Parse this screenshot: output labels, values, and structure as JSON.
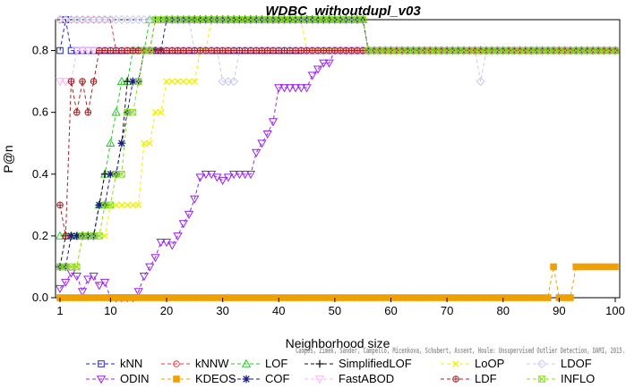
{
  "chart_data": {
    "type": "line",
    "title": "WDBC_withoutdupl_v03",
    "xlabel": "Neighborhood size",
    "ylabel": "P@n",
    "xlim": [
      1,
      100
    ],
    "ylim": [
      0,
      0.9
    ],
    "xticks": [
      1,
      10,
      20,
      30,
      40,
      50,
      60,
      70,
      80,
      90,
      100
    ],
    "yticks": [
      "0.0",
      "0.2",
      "0.4",
      "0.6",
      "0.8"
    ],
    "ytick_values": [
      0,
      0.2,
      0.4,
      0.6,
      0.8
    ],
    "grid": false,
    "legend_position": "bottom",
    "credit": "Campos, Zimek, Sander, Campello, Micenkova, Schubert, Assent, Houle: Unsupervised Outlier Detection, DAMI, 2015.",
    "series": [
      {
        "name": "kNN",
        "color": "#1f1fcf",
        "marker": "square",
        "points": [
          [
            1,
            0.8
          ],
          [
            2,
            0.9
          ],
          [
            3,
            0.8
          ],
          [
            100,
            0.8
          ]
        ]
      },
      {
        "name": "kNNW",
        "color": "#e83a3a",
        "marker": "circle",
        "points": [
          [
            1,
            0.9
          ],
          [
            10,
            0.9
          ],
          [
            11,
            0.8
          ],
          [
            100,
            0.8
          ]
        ]
      },
      {
        "name": "LOF",
        "color": "#22cc22",
        "marker": "triangle",
        "points": [
          [
            1,
            0.2
          ],
          [
            2,
            0.2
          ],
          [
            3,
            0.2
          ],
          [
            4,
            0.2
          ],
          [
            5,
            0.2
          ],
          [
            6,
            0.2
          ],
          [
            7,
            0.2
          ],
          [
            8,
            0.3
          ],
          [
            9,
            0.4
          ],
          [
            10,
            0.5
          ],
          [
            11,
            0.6
          ],
          [
            12,
            0.7
          ],
          [
            13,
            0.7
          ],
          [
            14,
            0.8
          ],
          [
            15,
            0.8
          ],
          [
            16,
            0.8
          ],
          [
            17,
            0.9
          ],
          [
            55,
            0.9
          ],
          [
            56,
            0.8
          ],
          [
            100,
            0.8
          ]
        ]
      },
      {
        "name": "SimplifiedLOF",
        "color": "#111111",
        "marker": "plus",
        "points": [
          [
            1,
            0.1
          ],
          [
            2,
            0.2
          ],
          [
            3,
            0.2
          ],
          [
            4,
            0.2
          ],
          [
            5,
            0.2
          ],
          [
            6,
            0.2
          ],
          [
            7,
            0.2
          ],
          [
            8,
            0.3
          ],
          [
            9,
            0.4
          ],
          [
            10,
            0.4
          ],
          [
            11,
            0.4
          ],
          [
            12,
            0.5
          ],
          [
            13,
            0.7
          ],
          [
            14,
            0.7
          ],
          [
            15,
            0.7
          ],
          [
            16,
            0.8
          ],
          [
            18,
            0.9
          ],
          [
            55,
            0.9
          ],
          [
            56,
            0.8
          ],
          [
            100,
            0.8
          ]
        ]
      },
      {
        "name": "LoOP",
        "color": "#f0f000",
        "marker": "x",
        "points": [
          [
            1,
            0.1
          ],
          [
            5,
            0.2
          ],
          [
            9,
            0.2
          ],
          [
            10,
            0.3
          ],
          [
            15,
            0.3
          ],
          [
            16,
            0.5
          ],
          [
            17,
            0.5
          ],
          [
            18,
            0.6
          ],
          [
            20,
            0.7
          ],
          [
            25,
            0.7
          ],
          [
            26,
            0.8
          ],
          [
            28,
            0.9
          ],
          [
            44,
            0.9
          ],
          [
            45,
            0.8
          ],
          [
            100,
            0.8
          ]
        ]
      },
      {
        "name": "LDOF",
        "color": "#c8c8f8",
        "marker": "diamond",
        "points": [
          [
            1,
            0.9
          ],
          [
            24,
            0.9
          ],
          [
            25,
            0.8
          ],
          [
            29,
            0.8
          ],
          [
            30,
            0.7
          ],
          [
            32,
            0.7
          ],
          [
            33,
            0.8
          ],
          [
            75,
            0.8
          ],
          [
            76,
            0.7
          ],
          [
            77,
            0.8
          ],
          [
            100,
            0.8
          ]
        ]
      },
      {
        "name": "ODIN",
        "color": "#9922ee",
        "marker": "triangle-down",
        "points": [
          [
            1,
            0.03
          ],
          [
            2,
            0.05
          ],
          [
            3,
            0.08
          ],
          [
            4,
            0.07
          ],
          [
            5,
            0.02
          ],
          [
            6,
            0.06
          ],
          [
            7,
            0.07
          ],
          [
            8,
            0.04
          ],
          [
            9,
            0.05
          ],
          [
            10,
            0.0
          ],
          [
            14,
            0.0
          ],
          [
            15,
            0.02
          ],
          [
            16,
            0.07
          ],
          [
            17,
            0.1
          ],
          [
            18,
            0.13
          ],
          [
            19,
            0.18
          ],
          [
            20,
            0.18
          ],
          [
            21,
            0.17
          ],
          [
            22,
            0.2
          ],
          [
            23,
            0.24
          ],
          [
            24,
            0.27
          ],
          [
            25,
            0.32
          ],
          [
            26,
            0.39
          ],
          [
            27,
            0.4
          ],
          [
            28,
            0.4
          ],
          [
            29,
            0.39
          ],
          [
            30,
            0.38
          ],
          [
            31,
            0.39
          ],
          [
            32,
            0.4
          ],
          [
            33,
            0.4
          ],
          [
            35,
            0.4
          ],
          [
            36,
            0.47
          ],
          [
            37,
            0.5
          ],
          [
            38,
            0.53
          ],
          [
            39,
            0.57
          ],
          [
            40,
            0.68
          ],
          [
            45,
            0.68
          ],
          [
            46,
            0.72
          ],
          [
            47,
            0.74
          ],
          [
            48,
            0.76
          ],
          [
            50,
            0.8
          ],
          [
            100,
            0.8
          ]
        ]
      },
      {
        "name": "KDEOS",
        "color": "#f0a000",
        "marker": "square-filled",
        "points": [
          [
            1,
            0.0
          ],
          [
            88,
            0.0
          ],
          [
            89,
            0.1
          ],
          [
            90,
            0.0
          ],
          [
            92,
            0.0
          ],
          [
            93,
            0.1
          ],
          [
            100,
            0.1
          ]
        ]
      },
      {
        "name": "COF",
        "color": "#1a1a8a",
        "marker": "asterisk",
        "points": [
          [
            1,
            0.1
          ],
          [
            2,
            0.1
          ],
          [
            3,
            0.2
          ],
          [
            4,
            0.2
          ],
          [
            5,
            0.2
          ],
          [
            6,
            0.2
          ],
          [
            7,
            0.2
          ],
          [
            8,
            0.3
          ],
          [
            9,
            0.3
          ],
          [
            10,
            0.4
          ],
          [
            11,
            0.4
          ],
          [
            12,
            0.5
          ],
          [
            13,
            0.6
          ],
          [
            14,
            0.7
          ],
          [
            15,
            0.7
          ],
          [
            16,
            0.8
          ],
          [
            17,
            0.8
          ],
          [
            18,
            0.8
          ],
          [
            20,
            0.9
          ],
          [
            55,
            0.9
          ],
          [
            56,
            0.8
          ],
          [
            100,
            0.8
          ]
        ]
      },
      {
        "name": "FastABOD",
        "color": "#ffb0ff",
        "marker": "triangle-down-outline",
        "points": [
          [
            1,
            0.7
          ],
          [
            3,
            0.7
          ],
          [
            4,
            0.8
          ],
          [
            100,
            0.8
          ]
        ]
      },
      {
        "name": "LDF",
        "color": "#aa2222",
        "marker": "circle-cross",
        "points": [
          [
            1,
            0.3
          ],
          [
            2,
            0.2
          ],
          [
            3,
            0.7
          ],
          [
            4,
            0.6
          ],
          [
            5,
            0.7
          ],
          [
            6,
            0.6
          ],
          [
            7,
            0.7
          ],
          [
            8,
            0.8
          ],
          [
            100,
            0.8
          ]
        ]
      },
      {
        "name": "INFLO",
        "color": "#88dd22",
        "marker": "square-x",
        "points": [
          [
            1,
            0.1
          ],
          [
            4,
            0.1
          ],
          [
            5,
            0.2
          ],
          [
            8,
            0.2
          ],
          [
            9,
            0.3
          ],
          [
            10,
            0.3
          ],
          [
            11,
            0.4
          ],
          [
            12,
            0.4
          ],
          [
            13,
            0.6
          ],
          [
            14,
            0.6
          ],
          [
            15,
            0.7
          ],
          [
            16,
            0.8
          ],
          [
            18,
            0.9
          ],
          [
            55,
            0.9
          ],
          [
            56,
            0.8
          ],
          [
            100,
            0.8
          ]
        ]
      }
    ]
  }
}
